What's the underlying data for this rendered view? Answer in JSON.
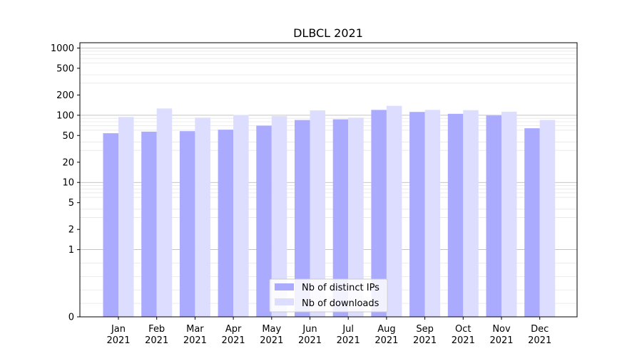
{
  "chart_data": {
    "type": "bar",
    "title": "DLBCL 2021",
    "xlabel": "",
    "ylabel": "",
    "yscale": "symlog",
    "ylim": [
      0,
      1200
    ],
    "grid": "y-major-and-minor",
    "categories": [
      "Jan\n2021",
      "Feb\n2021",
      "Mar\n2021",
      "Apr\n2021",
      "May\n2021",
      "Jun\n2021",
      "Jul\n2021",
      "Aug\n2021",
      "Sep\n2021",
      "Oct\n2021",
      "Nov\n2021",
      "Dec\n2021"
    ],
    "yticks": [
      0,
      1,
      2,
      5,
      10,
      20,
      50,
      100,
      200,
      500,
      1000
    ],
    "series": [
      {
        "name": "Nb of distinct IPs",
        "color": "#aaaaff",
        "values": [
          54,
          57,
          58,
          61,
          70,
          85,
          87,
          120,
          112,
          105,
          99,
          64
        ]
      },
      {
        "name": "Nb of downloads",
        "color": "#ddddff",
        "values": [
          94,
          126,
          92,
          101,
          97,
          118,
          92,
          138,
          120,
          119,
          113,
          85
        ]
      }
    ],
    "legend": {
      "placement": "bottom-center"
    }
  }
}
